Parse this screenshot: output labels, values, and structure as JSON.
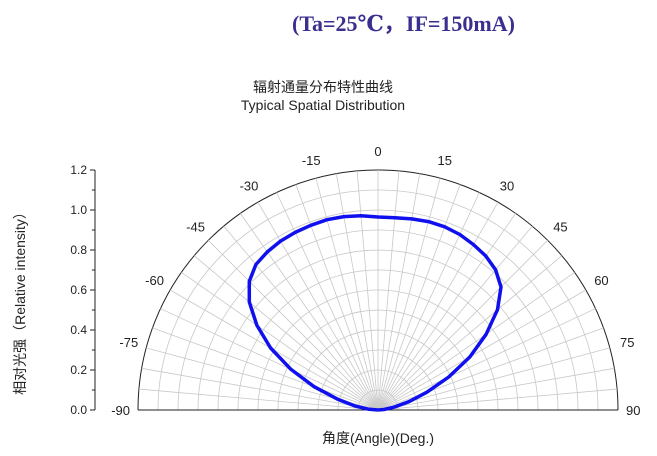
{
  "header": {
    "conditions": "(Ta=25℃，IF=150mA)"
  },
  "chart_data": {
    "type": "polar-line",
    "title_cn": "辐射通量分布特性曲线",
    "title_en": "Typical Spatial Distribution",
    "xlabel": "角度(Angle)(Deg.)",
    "ylabel": "相对光强（Relative intensity）",
    "radial_ticks": [
      "0.0",
      "0.2",
      "0.4",
      "0.6",
      "0.8",
      "1.0",
      "1.2"
    ],
    "radial_range": [
      0,
      1.2
    ],
    "angle_range": [
      -90,
      90
    ],
    "angle_ticks": [
      -90,
      -75,
      -60,
      -45,
      -30,
      -15,
      0,
      15,
      30,
      45,
      60,
      75,
      90
    ],
    "angle_tick_labels": [
      "-90",
      "-75",
      "-60",
      "-45",
      "-30",
      "-15",
      "0",
      "15",
      "30",
      "45",
      "60",
      "75",
      "90"
    ],
    "grid": true,
    "series": [
      {
        "color": "#1010ee",
        "angles": [
          -90,
          -85,
          -80,
          -75,
          -70,
          -65,
          -60,
          -55,
          -50,
          -45,
          -40,
          -35,
          -30,
          -25,
          -20,
          -15,
          -10,
          -5,
          0,
          5,
          10,
          15,
          20,
          25,
          30,
          35,
          40,
          45,
          50,
          55,
          60,
          65,
          70,
          75,
          80,
          85,
          90
        ],
        "values": [
          0.0,
          0.05,
          0.12,
          0.21,
          0.34,
          0.48,
          0.62,
          0.74,
          0.84,
          0.91,
          0.95,
          0.965,
          0.975,
          0.98,
          0.983,
          0.985,
          0.982,
          0.975,
          0.965,
          0.965,
          0.97,
          0.975,
          0.975,
          0.968,
          0.955,
          0.94,
          0.915,
          0.87,
          0.78,
          0.66,
          0.53,
          0.39,
          0.26,
          0.16,
          0.08,
          0.03,
          0.0
        ]
      }
    ]
  }
}
